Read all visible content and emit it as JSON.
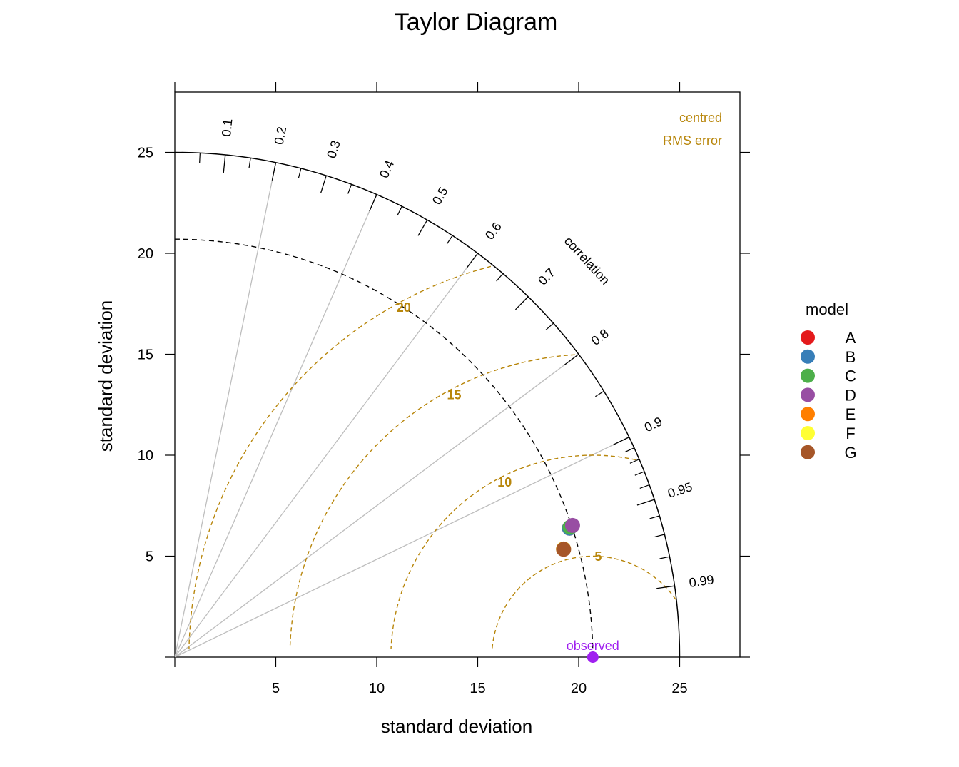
{
  "chart_data": {
    "type": "scatter",
    "subtype": "taylor-diagram",
    "title": "Taylor Diagram",
    "xlabel": "standard deviation",
    "ylabel": "standard deviation",
    "xlim": [
      0,
      28
    ],
    "ylim": [
      0,
      28
    ],
    "x_ticks": [
      5,
      10,
      15,
      20,
      25
    ],
    "y_ticks": [
      5,
      10,
      15,
      20,
      25
    ],
    "max_sd_arc": 25,
    "observed": {
      "sd": 20.7,
      "label": "observed",
      "color": "#A020F0"
    },
    "correlation": {
      "axis_label": "correlation",
      "major_ticks": [
        0.1,
        0.2,
        0.3,
        0.4,
        0.5,
        0.6,
        0.7,
        0.8,
        0.9,
        0.95,
        0.99
      ],
      "minor_ticks": [
        0.05,
        0.15,
        0.25,
        0.35,
        0.45,
        0.55,
        0.65,
        0.75,
        0.85,
        0.91,
        0.92,
        0.93,
        0.94,
        0.96,
        0.97,
        0.98
      ],
      "radial_lines": [
        0.2,
        0.4,
        0.6,
        0.8,
        0.9
      ]
    },
    "rms": {
      "note_lines": [
        "centred",
        "RMS error"
      ],
      "levels": [
        5,
        10,
        15,
        20
      ],
      "color": "#B8860B"
    },
    "legend": {
      "title": "model",
      "position": "right"
    },
    "series": [
      {
        "name": "A",
        "color": "#E41A1C",
        "sd": 20.56,
        "correlation": 0.9505
      },
      {
        "name": "B",
        "color": "#377EB8",
        "sd": 20.56,
        "correlation": 0.9505
      },
      {
        "name": "C",
        "color": "#4DAF4A",
        "sd": 20.6,
        "correlation": 0.95
      },
      {
        "name": "D",
        "color": "#984EA3",
        "sd": 20.75,
        "correlation": 0.9493
      },
      {
        "name": "E",
        "color": "#FF7F00",
        "sd": 19.98,
        "correlation": 0.9634
      },
      {
        "name": "F",
        "color": "#FFFF33",
        "sd": 19.98,
        "correlation": 0.9634
      },
      {
        "name": "G",
        "color": "#A65628",
        "sd": 19.98,
        "correlation": 0.9636
      }
    ]
  }
}
